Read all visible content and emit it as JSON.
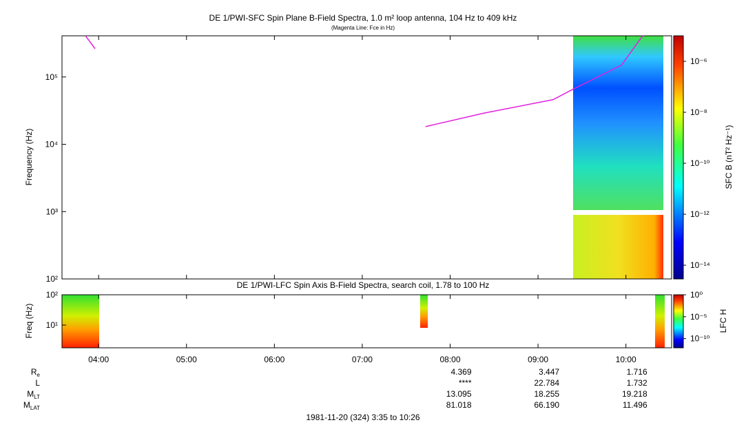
{
  "top_panel": {
    "type": "line",
    "title": "DE 1/PWI-SFC  Spin Plane B-Field Spectra, 1.0 m² loop antenna, 104 Hz to 409 kHz",
    "subtitle": "(Magenta Line: Fce in Hz)",
    "y_label": "Frequency (Hz)",
    "log_y": true,
    "xlim": [
      3.583,
      10.52
    ],
    "ylim": [
      100,
      409000
    ],
    "yticks": [
      {
        "value": 100,
        "label": "10²"
      },
      {
        "value": 1000,
        "label": "10³"
      },
      {
        "value": 10000,
        "label": "10⁴"
      },
      {
        "value": 100000,
        "label": "10⁵"
      }
    ],
    "series": [
      {
        "name": "Fce",
        "color": "#e020e0",
        "x": [
          3.85,
          3.96,
          null,
          7.72,
          8.38,
          9.17,
          9.4,
          9.95,
          10.19
        ],
        "values": [
          409000,
          263000,
          null,
          18300,
          29000,
          46000,
          66000,
          150000,
          409000
        ]
      }
    ],
    "colorbar": {
      "label": "SFC B (nT² Hz⁻¹)",
      "log": true,
      "clim": [
        2.9e-15,
        1e-05
      ],
      "ticks": [
        {
          "value": 1e-06,
          "label": "10⁻⁶"
        },
        {
          "value": 1e-08,
          "label": "10⁻⁸"
        },
        {
          "value": 1e-10,
          "label": "10⁻¹⁰"
        },
        {
          "value": 1e-12,
          "label": "10⁻¹²"
        },
        {
          "value": 1e-14,
          "label": "10⁻¹⁴"
        }
      ]
    }
  },
  "bottom_panel": {
    "title": "DE 1/PWI-LFC  Spin Axis B-Field Spectra, search coil, 1.78 to 100 Hz",
    "y_label": "Freq (Hz)",
    "log_y": true,
    "ylim": [
      1.78,
      100
    ],
    "yticks": [
      {
        "value": 10,
        "label": "10¹"
      },
      {
        "value": 100,
        "label": "10²"
      }
    ],
    "colorbar": {
      "label": "LFC H",
      "log": true,
      "clim": [
        8e-13,
        1
      ],
      "ticks": [
        {
          "value": 1,
          "label": "10⁰"
        },
        {
          "value": 1e-05,
          "label": "10⁻⁵"
        },
        {
          "value": 1e-10,
          "label": "10⁻¹⁰"
        }
      ]
    }
  },
  "xticks": [
    {
      "value": 4,
      "label": "04:00"
    },
    {
      "value": 5,
      "label": "05:00"
    },
    {
      "value": 6,
      "label": "06:00"
    },
    {
      "value": 7,
      "label": "07:00"
    },
    {
      "value": 8,
      "label": "08:00"
    },
    {
      "value": 9,
      "label": "09:00"
    },
    {
      "value": 10,
      "label": "10:00"
    }
  ],
  "ephemeris": {
    "rows": [
      {
        "label": "R",
        "sub": "e",
        "values": [
          "4.369",
          "3.447",
          "1.716"
        ]
      },
      {
        "label": "L",
        "sub": "",
        "values": [
          "****",
          "22.784",
          "1.732"
        ]
      },
      {
        "label": "M",
        "sub": "LT",
        "values": [
          "13.095",
          "18.255",
          "19.218"
        ]
      },
      {
        "label": "M",
        "sub": "LAT",
        "values": [
          "81.018",
          "66.190",
          "11.496"
        ]
      }
    ]
  },
  "footer": "1981-11-20 (324) 3:35 to 10:26"
}
